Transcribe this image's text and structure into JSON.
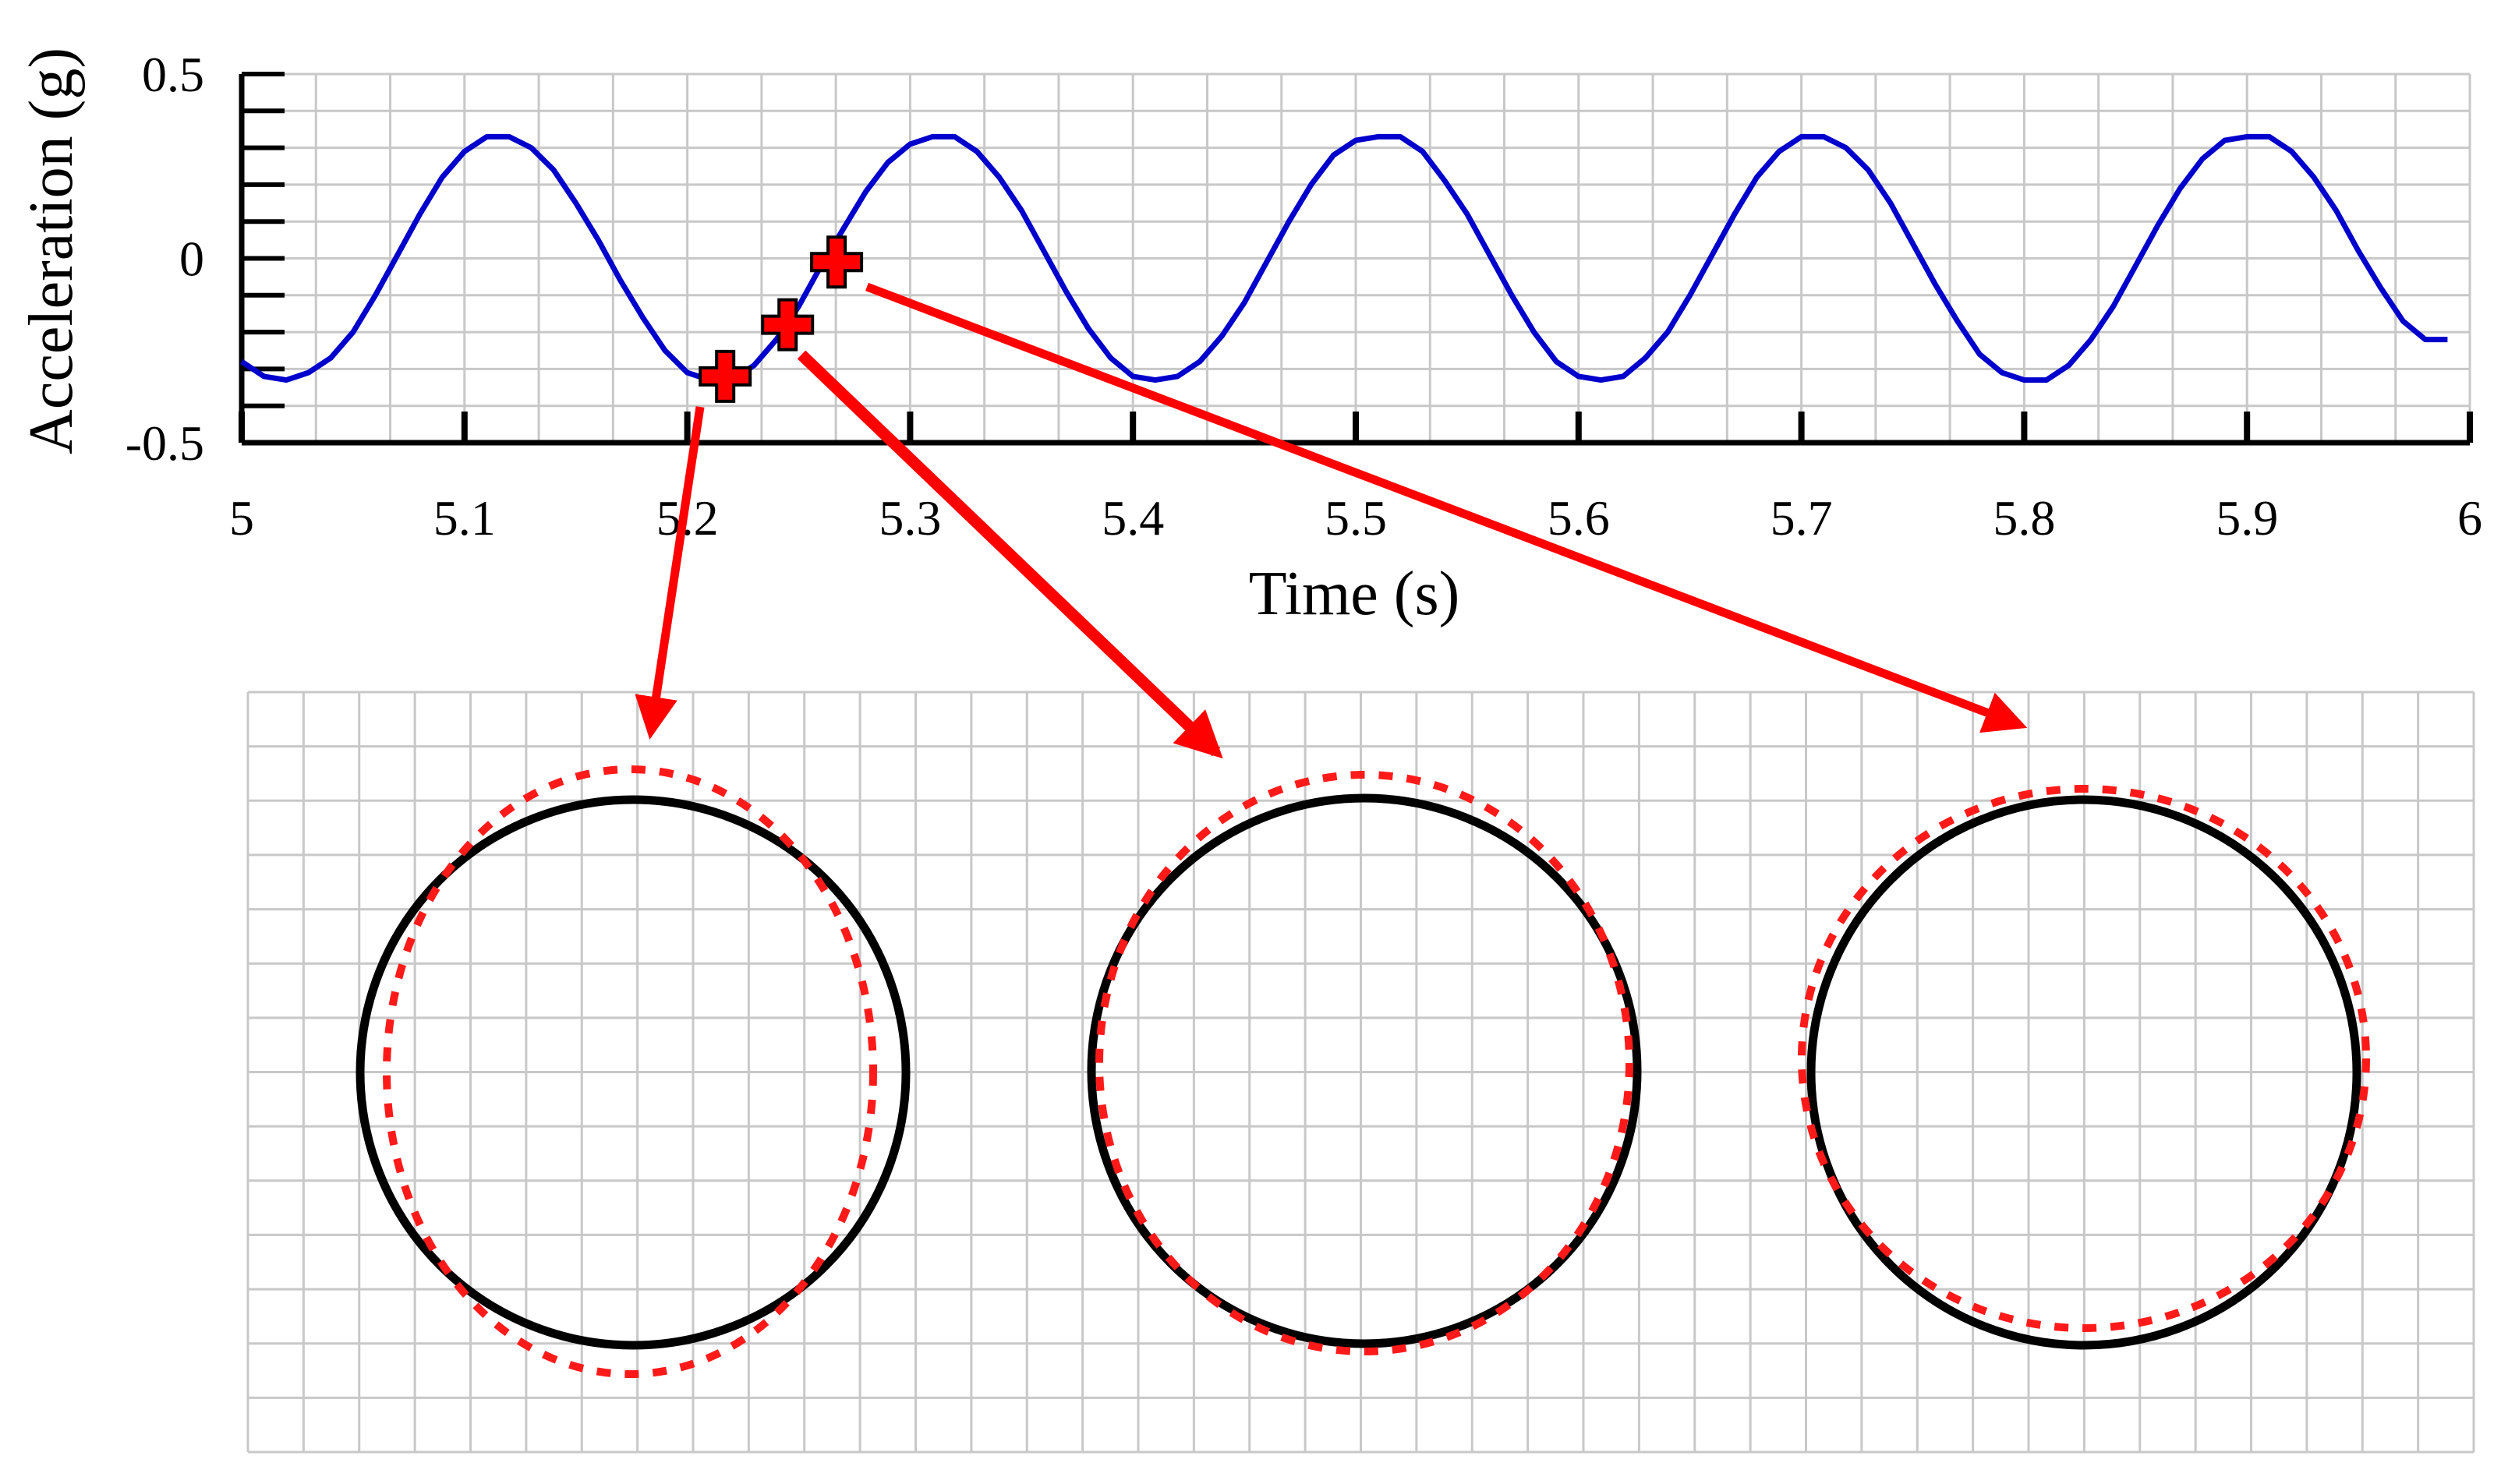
{
  "chart_data": {
    "type": "line",
    "title": "",
    "xlabel": "Time (s)",
    "ylabel": "Acceleration (g)",
    "xlim": [
      5,
      6
    ],
    "ylim": [
      -0.5,
      0.5
    ],
    "x_ticks": [
      5,
      5.1,
      5.2,
      5.3,
      5.4,
      5.5,
      5.6,
      5.7,
      5.8,
      5.9,
      6
    ],
    "x_tick_labels": [
      "5",
      "5.1",
      "5.2",
      "5.3",
      "5.4",
      "5.5",
      "5.6",
      "5.7",
      "5.8",
      "5.9",
      "6"
    ],
    "y_ticks": [
      -0.5,
      0,
      0.5
    ],
    "y_tick_labels": [
      "-0.5",
      "0",
      "0.5"
    ],
    "grid": true,
    "series": [
      {
        "color": "#0000cc",
        "x": [
          5.0,
          5.01,
          5.02,
          5.03,
          5.04,
          5.05,
          5.06,
          5.07,
          5.08,
          5.09,
          5.1,
          5.11,
          5.12,
          5.13,
          5.14,
          5.15,
          5.16,
          5.17,
          5.18,
          5.19,
          5.2,
          5.21,
          5.22,
          5.23,
          5.24,
          5.25,
          5.26,
          5.27,
          5.28,
          5.29,
          5.3,
          5.31,
          5.32,
          5.33,
          5.34,
          5.35,
          5.36,
          5.37,
          5.38,
          5.39,
          5.4,
          5.41,
          5.42,
          5.43,
          5.44,
          5.45,
          5.46,
          5.47,
          5.48,
          5.49,
          5.5,
          5.51,
          5.52,
          5.53,
          5.54,
          5.55,
          5.56,
          5.57,
          5.58,
          5.59,
          5.6,
          5.61,
          5.62,
          5.63,
          5.64,
          5.65,
          5.66,
          5.67,
          5.68,
          5.69,
          5.7,
          5.71,
          5.72,
          5.73,
          5.74,
          5.75,
          5.76,
          5.77,
          5.78,
          5.79,
          5.8,
          5.81,
          5.82,
          5.83,
          5.84,
          5.85,
          5.86,
          5.87,
          5.88,
          5.89,
          5.9,
          5.91,
          5.92,
          5.93,
          5.94,
          5.95,
          5.96,
          5.97,
          5.98,
          5.99
        ],
        "y": [
          -0.28,
          -0.32,
          -0.33,
          -0.31,
          -0.27,
          -0.2,
          -0.1,
          0.01,
          0.12,
          0.22,
          0.29,
          0.33,
          0.33,
          0.3,
          0.24,
          0.15,
          0.05,
          -0.06,
          -0.16,
          -0.25,
          -0.31,
          -0.33,
          -0.33,
          -0.29,
          -0.22,
          -0.13,
          -0.02,
          0.08,
          0.18,
          0.26,
          0.31,
          0.33,
          0.33,
          0.29,
          0.22,
          0.13,
          0.02,
          -0.09,
          -0.19,
          -0.27,
          -0.32,
          -0.33,
          -0.32,
          -0.28,
          -0.21,
          -0.12,
          -0.01,
          0.1,
          0.2,
          0.28,
          0.32,
          0.33,
          0.33,
          0.29,
          0.21,
          0.12,
          0.01,
          -0.1,
          -0.2,
          -0.28,
          -0.32,
          -0.33,
          -0.32,
          -0.27,
          -0.2,
          -0.1,
          0.01,
          0.12,
          0.22,
          0.29,
          0.33,
          0.33,
          0.3,
          0.24,
          0.15,
          0.04,
          -0.07,
          -0.17,
          -0.26,
          -0.31,
          -0.33,
          -0.33,
          -0.29,
          -0.22,
          -0.13,
          -0.02,
          0.09,
          0.19,
          0.27,
          0.32,
          0.33,
          0.33,
          0.29,
          0.22,
          0.13,
          0.02,
          -0.08,
          -0.17,
          -0.22,
          -0.22
        ]
      }
    ],
    "markers": [
      {
        "x": 5.217,
        "y": -0.32,
        "symbol": "plus",
        "color": "#ff0000"
      },
      {
        "x": 5.245,
        "y": -0.18,
        "symbol": "plus",
        "color": "#ff0000"
      },
      {
        "x": 5.267,
        "y": -0.01,
        "symbol": "plus",
        "color": "#ff0000"
      }
    ],
    "deformation_panels": [
      {
        "reference": "black-solid-circle",
        "deformed": "red-dashed-ellipse",
        "deformation": "vertical-elongation"
      },
      {
        "reference": "black-solid-circle",
        "deformed": "red-dashed-ellipse",
        "deformation": "slight-vertical-elongation"
      },
      {
        "reference": "black-solid-circle",
        "deformed": "red-dashed-ellipse",
        "deformation": "horizontal-elongation"
      }
    ]
  }
}
